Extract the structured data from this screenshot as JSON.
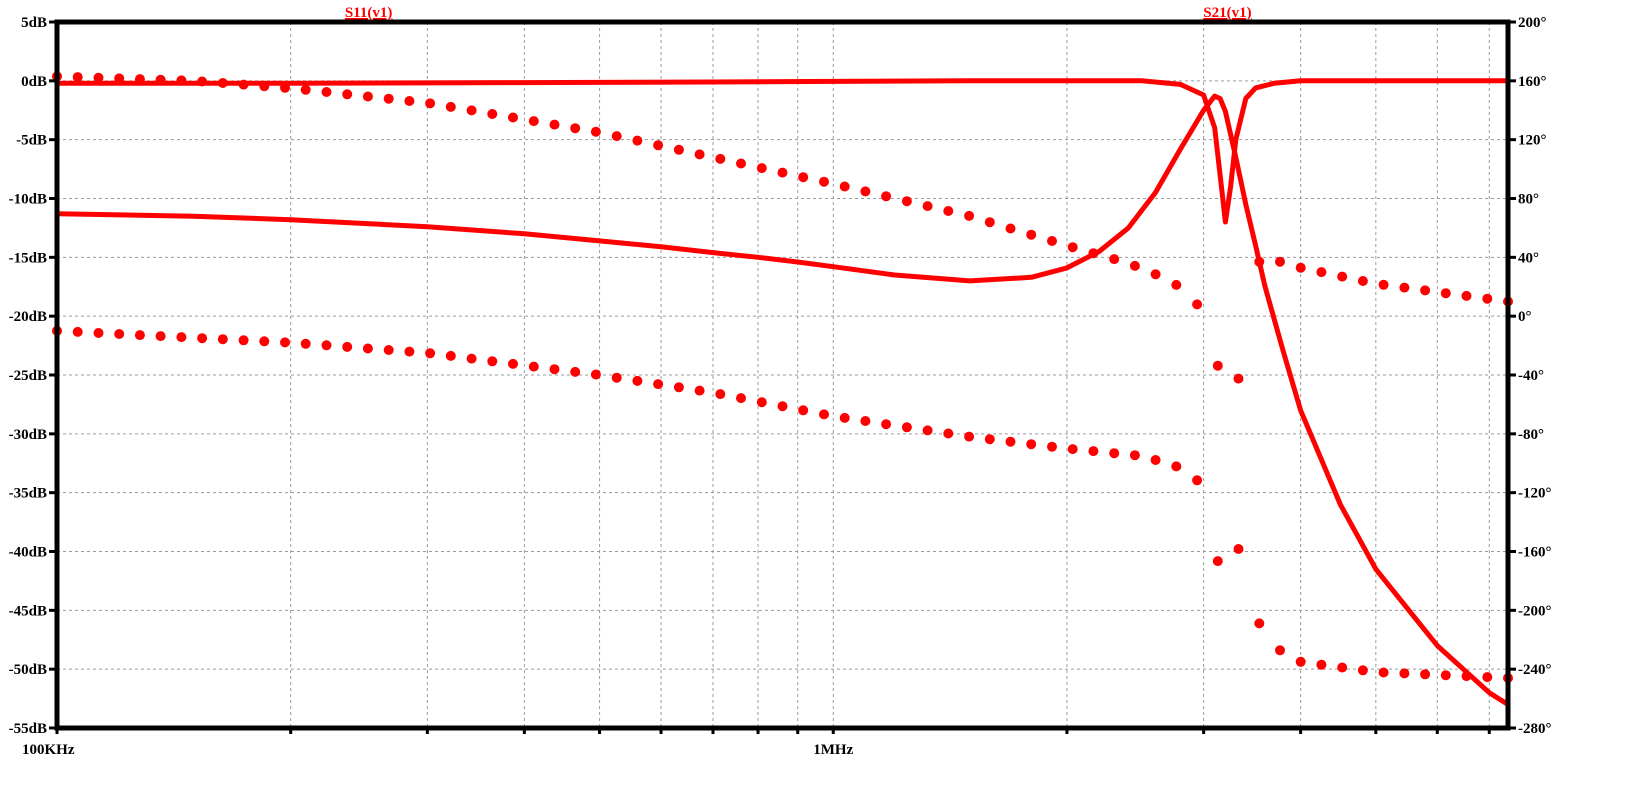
{
  "chart_data": {
    "type": "line",
    "title": "",
    "xscale": "log",
    "xlim_hz": [
      100000,
      7400000
    ],
    "x_tick_labels": [
      {
        "value": 100000,
        "label": "100KHz"
      },
      {
        "value": 1000000,
        "label": "1MHz"
      }
    ],
    "y_left": {
      "unit": "dB",
      "ylim": [
        -55,
        5
      ],
      "ticks": [
        {
          "value": 5,
          "label": "5dB"
        },
        {
          "value": 0,
          "label": "0dB"
        },
        {
          "value": -5,
          "label": "-5dB"
        },
        {
          "value": -10,
          "label": "-10dB"
        },
        {
          "value": -15,
          "label": "-15dB"
        },
        {
          "value": -20,
          "label": "-20dB"
        },
        {
          "value": -25,
          "label": "-25dB"
        },
        {
          "value": -30,
          "label": "-30dB"
        },
        {
          "value": -35,
          "label": "-35dB"
        },
        {
          "value": -40,
          "label": "-40dB"
        },
        {
          "value": -45,
          "label": "-45dB"
        },
        {
          "value": -50,
          "label": "-50dB"
        },
        {
          "value": -55,
          "label": "-55dB"
        }
      ]
    },
    "y_right": {
      "unit": "degrees",
      "ylim": [
        -280,
        200
      ],
      "ticks": [
        {
          "value": 200,
          "label": "200°"
        },
        {
          "value": 160,
          "label": "160°"
        },
        {
          "value": 120,
          "label": "120°"
        },
        {
          "value": 80,
          "label": "80°"
        },
        {
          "value": 40,
          "label": "40°"
        },
        {
          "value": 0,
          "label": "0°"
        },
        {
          "value": -40,
          "label": "-40°"
        },
        {
          "value": -80,
          "label": "-80°"
        },
        {
          "value": -120,
          "label": "-120°"
        },
        {
          "value": -160,
          "label": "-160°"
        },
        {
          "value": -200,
          "label": "-200°"
        },
        {
          "value": -240,
          "label": "-240°"
        },
        {
          "value": -280,
          "label": "-280°"
        }
      ]
    },
    "grid": true,
    "color": "#ff0000",
    "trace_labels": [
      {
        "text": "S11(v1)",
        "at_hz": 252000
      },
      {
        "text": "S21(v1)",
        "at_hz": 3220000
      }
    ],
    "series": [
      {
        "name": "S11(v1)",
        "quantity": "magnitude",
        "axis": "left",
        "style": "solid",
        "x": [
          100000,
          150000,
          200000,
          300000,
          400000,
          500000,
          600000,
          700000,
          800000,
          900000,
          1000000,
          1200000,
          1500000,
          1800000,
          2000000,
          2200000,
          2400000,
          2600000,
          2800000,
          3000000,
          3100000,
          3150000,
          3200000,
          3300000,
          3400000,
          3500000,
          3600000,
          3800000,
          4000000,
          4500000,
          5000000,
          6000000,
          7000000,
          7400000
        ],
        "y": [
          -11.3,
          -11.5,
          -11.8,
          -12.4,
          -13.0,
          -13.6,
          -14.1,
          -14.6,
          -15.0,
          -15.4,
          -15.8,
          -16.5,
          -17.0,
          -16.7,
          -15.9,
          -14.5,
          -12.5,
          -9.5,
          -5.8,
          -2.5,
          -1.3,
          -1.5,
          -2.6,
          -6.5,
          -10.5,
          -14.0,
          -17.5,
          -23.0,
          -28.0,
          -36.0,
          -41.5,
          -48.0,
          -52.0,
          -53.0
        ]
      },
      {
        "name": "S21(v1)",
        "quantity": "magnitude",
        "axis": "left",
        "style": "solid",
        "x": [
          100000,
          200000,
          400000,
          700000,
          1000000,
          1500000,
          2000000,
          2500000,
          2800000,
          3000000,
          3100000,
          3150000,
          3200000,
          3250000,
          3300000,
          3400000,
          3500000,
          3700000,
          4000000,
          5000000,
          7400000
        ],
        "y": [
          -0.2,
          -0.2,
          -0.15,
          -0.1,
          -0.05,
          0.0,
          0.0,
          0.0,
          -0.3,
          -1.2,
          -4.0,
          -8.0,
          -12.0,
          -9.0,
          -5.0,
          -1.5,
          -0.6,
          -0.2,
          0.0,
          0.0,
          0.0
        ]
      },
      {
        "name": "S11(v1)",
        "quantity": "phase",
        "axis": "right",
        "style": "dotted",
        "x": [
          100000,
          150000,
          200000,
          300000,
          500000,
          700000,
          1000000,
          1500000,
          2000000,
          2400000,
          2700000,
          2900000,
          3000000,
          3050000,
          3100000,
          3150000,
          3200000,
          3250000,
          3300000,
          3400000,
          3500000,
          3700000,
          4000000,
          5000000,
          7400000
        ],
        "y": [
          163,
          160,
          155,
          145,
          125,
          108,
          90,
          68,
          48,
          36,
          25,
          14,
          0,
          -10,
          -25,
          -40,
          -70,
          -120,
          -150,
          -180,
          -205,
          -225,
          -235,
          -242,
          -246
        ]
      },
      {
        "name": "S21(v1)",
        "quantity": "phase",
        "axis": "right",
        "style": "dotted",
        "x": [
          100000,
          200000,
          300000,
          500000,
          700000,
          1000000,
          1500000,
          2000000,
          2500000,
          2800000,
          3000000,
          3100000,
          3150000,
          3200000,
          3300000,
          3400000,
          3600000,
          4000000,
          5000000,
          7400000
        ],
        "y": [
          -10,
          -18,
          -25,
          -40,
          -52,
          -68,
          -82,
          -90,
          -95,
          -103,
          -115,
          -148,
          -180,
          -140,
          -70,
          30,
          40,
          33,
          22,
          10
        ]
      }
    ]
  }
}
